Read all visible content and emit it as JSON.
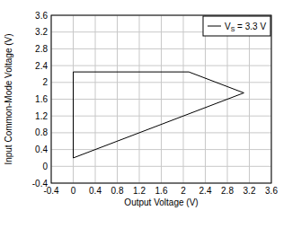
{
  "chart_data": {
    "type": "line",
    "x_label": "Output Voltage (V)",
    "y_label": "Input Common-Mode Voltage (V)",
    "series": [
      {
        "name": "VS = 3.3 V",
        "color": "#000000",
        "x": [
          0,
          0,
          2.1,
          3.1,
          0
        ],
        "values": [
          0.2,
          2.25,
          2.25,
          1.75,
          0.2
        ]
      }
    ],
    "xlim": [
      -0.4,
      3.6
    ],
    "xticks": [
      -0.4,
      0,
      0.4,
      0.8,
      1.2,
      1.6,
      2,
      2.4,
      2.8,
      3.2,
      3.6
    ],
    "ylim": [
      -0.4,
      3.6
    ],
    "yticks": [
      -0.4,
      0,
      0.4,
      0.8,
      1.2,
      1.6,
      2,
      2.4,
      2.8,
      3.2,
      3.6
    ],
    "grid": true,
    "legend": "top-right"
  }
}
